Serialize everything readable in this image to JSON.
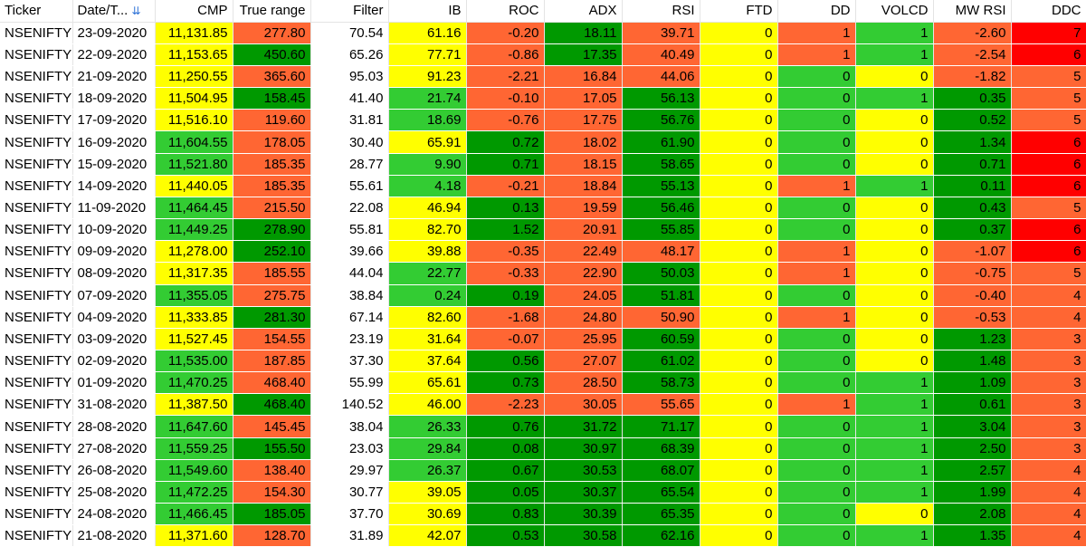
{
  "colors": {
    "yellow": "#ffff00",
    "light_green": "#33cc33",
    "dark_green": "#009900",
    "orange": "#ff6633",
    "red": "#ff0000",
    "white": "#ffffff"
  },
  "columns": [
    {
      "key": "ticker",
      "label": "Ticker",
      "align": "left",
      "width": 80
    },
    {
      "key": "date",
      "label": "Date/T...",
      "align": "left",
      "width": 91,
      "sort_icon": "sort-descending-icon"
    },
    {
      "key": "cmp",
      "label": "CMP",
      "align": "right",
      "width": 86
    },
    {
      "key": "true_range",
      "label": "True range",
      "align": "right",
      "width": 86
    },
    {
      "key": "filter",
      "label": "Filter",
      "align": "right",
      "width": 86
    },
    {
      "key": "ib",
      "label": "IB",
      "align": "right",
      "width": 86
    },
    {
      "key": "roc",
      "label": "ROC",
      "align": "right",
      "width": 86
    },
    {
      "key": "adx",
      "label": "ADX",
      "align": "right",
      "width": 86
    },
    {
      "key": "rsi",
      "label": "RSI",
      "align": "right",
      "width": 86
    },
    {
      "key": "ftd",
      "label": "FTD",
      "align": "right",
      "width": 86
    },
    {
      "key": "dd",
      "label": "DD",
      "align": "right",
      "width": 86
    },
    {
      "key": "volcd",
      "label": "VOLCD",
      "align": "right",
      "width": 86
    },
    {
      "key": "mw_rsi",
      "label": "MW RSI",
      "align": "right",
      "width": 86
    },
    {
      "key": "ddc",
      "label": "DDC",
      "align": "right",
      "width": 83
    }
  ],
  "rows": [
    {
      "ticker": "NSENIFTY",
      "date": "23-09-2020",
      "cmp": "11,131.85",
      "true_range": "277.80",
      "filter": "70.54",
      "ib": "61.16",
      "roc": "-0.20",
      "adx": "18.11",
      "rsi": "39.71",
      "ftd": "0",
      "dd": "1",
      "volcd": "1",
      "mw_rsi": "-2.60",
      "ddc": "7",
      "bg": {
        "cmp": "yellow",
        "true_range": "orange",
        "filter": "white",
        "ib": "yellow",
        "roc": "orange",
        "adx": "dark_green",
        "rsi": "orange",
        "ftd": "yellow",
        "dd": "orange",
        "volcd": "light_green",
        "mw_rsi": "orange",
        "ddc": "red"
      }
    },
    {
      "ticker": "NSENIFTY",
      "date": "22-09-2020",
      "cmp": "11,153.65",
      "true_range": "450.60",
      "filter": "65.26",
      "ib": "77.71",
      "roc": "-0.86",
      "adx": "17.35",
      "rsi": "40.49",
      "ftd": "0",
      "dd": "1",
      "volcd": "1",
      "mw_rsi": "-2.54",
      "ddc": "6",
      "bg": {
        "cmp": "yellow",
        "true_range": "dark_green",
        "filter": "white",
        "ib": "yellow",
        "roc": "orange",
        "adx": "dark_green",
        "rsi": "orange",
        "ftd": "yellow",
        "dd": "orange",
        "volcd": "light_green",
        "mw_rsi": "orange",
        "ddc": "red"
      }
    },
    {
      "ticker": "NSENIFTY",
      "date": "21-09-2020",
      "cmp": "11,250.55",
      "true_range": "365.60",
      "filter": "95.03",
      "ib": "91.23",
      "roc": "-2.21",
      "adx": "16.84",
      "rsi": "44.06",
      "ftd": "0",
      "dd": "0",
      "volcd": "0",
      "mw_rsi": "-1.82",
      "ddc": "5",
      "bg": {
        "cmp": "yellow",
        "true_range": "orange",
        "filter": "white",
        "ib": "yellow",
        "roc": "orange",
        "adx": "orange",
        "rsi": "orange",
        "ftd": "yellow",
        "dd": "light_green",
        "volcd": "yellow",
        "mw_rsi": "orange",
        "ddc": "orange"
      }
    },
    {
      "ticker": "NSENIFTY",
      "date": "18-09-2020",
      "cmp": "11,504.95",
      "true_range": "158.45",
      "filter": "41.40",
      "ib": "21.74",
      "roc": "-0.10",
      "adx": "17.05",
      "rsi": "56.13",
      "ftd": "0",
      "dd": "0",
      "volcd": "1",
      "mw_rsi": "0.35",
      "ddc": "5",
      "bg": {
        "cmp": "yellow",
        "true_range": "dark_green",
        "filter": "white",
        "ib": "light_green",
        "roc": "orange",
        "adx": "orange",
        "rsi": "dark_green",
        "ftd": "yellow",
        "dd": "light_green",
        "volcd": "light_green",
        "mw_rsi": "dark_green",
        "ddc": "orange"
      }
    },
    {
      "ticker": "NSENIFTY",
      "date": "17-09-2020",
      "cmp": "11,516.10",
      "true_range": "119.60",
      "filter": "31.81",
      "ib": "18.69",
      "roc": "-0.76",
      "adx": "17.75",
      "rsi": "56.76",
      "ftd": "0",
      "dd": "0",
      "volcd": "0",
      "mw_rsi": "0.52",
      "ddc": "5",
      "bg": {
        "cmp": "yellow",
        "true_range": "orange",
        "filter": "white",
        "ib": "light_green",
        "roc": "orange",
        "adx": "orange",
        "rsi": "dark_green",
        "ftd": "yellow",
        "dd": "light_green",
        "volcd": "yellow",
        "mw_rsi": "dark_green",
        "ddc": "orange"
      }
    },
    {
      "ticker": "NSENIFTY",
      "date": "16-09-2020",
      "cmp": "11,604.55",
      "true_range": "178.05",
      "filter": "30.40",
      "ib": "65.91",
      "roc": "0.72",
      "adx": "18.02",
      "rsi": "61.90",
      "ftd": "0",
      "dd": "0",
      "volcd": "0",
      "mw_rsi": "1.34",
      "ddc": "6",
      "bg": {
        "cmp": "light_green",
        "true_range": "orange",
        "filter": "white",
        "ib": "yellow",
        "roc": "dark_green",
        "adx": "orange",
        "rsi": "dark_green",
        "ftd": "yellow",
        "dd": "light_green",
        "volcd": "yellow",
        "mw_rsi": "dark_green",
        "ddc": "red"
      }
    },
    {
      "ticker": "NSENIFTY",
      "date": "15-09-2020",
      "cmp": "11,521.80",
      "true_range": "185.35",
      "filter": "28.77",
      "ib": "9.90",
      "roc": "0.71",
      "adx": "18.15",
      "rsi": "58.65",
      "ftd": "0",
      "dd": "0",
      "volcd": "0",
      "mw_rsi": "0.71",
      "ddc": "6",
      "bg": {
        "cmp": "light_green",
        "true_range": "orange",
        "filter": "white",
        "ib": "light_green",
        "roc": "dark_green",
        "adx": "orange",
        "rsi": "dark_green",
        "ftd": "yellow",
        "dd": "light_green",
        "volcd": "yellow",
        "mw_rsi": "dark_green",
        "ddc": "red"
      }
    },
    {
      "ticker": "NSENIFTY",
      "date": "14-09-2020",
      "cmp": "11,440.05",
      "true_range": "185.35",
      "filter": "55.61",
      "ib": "4.18",
      "roc": "-0.21",
      "adx": "18.84",
      "rsi": "55.13",
      "ftd": "0",
      "dd": "1",
      "volcd": "1",
      "mw_rsi": "0.11",
      "ddc": "6",
      "bg": {
        "cmp": "yellow",
        "true_range": "orange",
        "filter": "white",
        "ib": "light_green",
        "roc": "orange",
        "adx": "orange",
        "rsi": "dark_green",
        "ftd": "yellow",
        "dd": "orange",
        "volcd": "light_green",
        "mw_rsi": "dark_green",
        "ddc": "red"
      }
    },
    {
      "ticker": "NSENIFTY",
      "date": "11-09-2020",
      "cmp": "11,464.45",
      "true_range": "215.50",
      "filter": "22.08",
      "ib": "46.94",
      "roc": "0.13",
      "adx": "19.59",
      "rsi": "56.46",
      "ftd": "0",
      "dd": "0",
      "volcd": "0",
      "mw_rsi": "0.43",
      "ddc": "5",
      "bg": {
        "cmp": "light_green",
        "true_range": "orange",
        "filter": "white",
        "ib": "yellow",
        "roc": "dark_green",
        "adx": "orange",
        "rsi": "dark_green",
        "ftd": "yellow",
        "dd": "light_green",
        "volcd": "yellow",
        "mw_rsi": "dark_green",
        "ddc": "orange"
      }
    },
    {
      "ticker": "NSENIFTY",
      "date": "10-09-2020",
      "cmp": "11,449.25",
      "true_range": "278.90",
      "filter": "55.81",
      "ib": "82.70",
      "roc": "1.52",
      "adx": "20.91",
      "rsi": "55.85",
      "ftd": "0",
      "dd": "0",
      "volcd": "0",
      "mw_rsi": "0.37",
      "ddc": "6",
      "bg": {
        "cmp": "light_green",
        "true_range": "dark_green",
        "filter": "white",
        "ib": "yellow",
        "roc": "dark_green",
        "adx": "orange",
        "rsi": "dark_green",
        "ftd": "yellow",
        "dd": "light_green",
        "volcd": "yellow",
        "mw_rsi": "dark_green",
        "ddc": "red"
      }
    },
    {
      "ticker": "NSENIFTY",
      "date": "09-09-2020",
      "cmp": "11,278.00",
      "true_range": "252.10",
      "filter": "39.66",
      "ib": "39.88",
      "roc": "-0.35",
      "adx": "22.49",
      "rsi": "48.17",
      "ftd": "0",
      "dd": "1",
      "volcd": "0",
      "mw_rsi": "-1.07",
      "ddc": "6",
      "bg": {
        "cmp": "yellow",
        "true_range": "dark_green",
        "filter": "white",
        "ib": "yellow",
        "roc": "orange",
        "adx": "orange",
        "rsi": "orange",
        "ftd": "yellow",
        "dd": "orange",
        "volcd": "yellow",
        "mw_rsi": "orange",
        "ddc": "red"
      }
    },
    {
      "ticker": "NSENIFTY",
      "date": "08-09-2020",
      "cmp": "11,317.35",
      "true_range": "185.55",
      "filter": "44.04",
      "ib": "22.77",
      "roc": "-0.33",
      "adx": "22.90",
      "rsi": "50.03",
      "ftd": "0",
      "dd": "1",
      "volcd": "0",
      "mw_rsi": "-0.75",
      "ddc": "5",
      "bg": {
        "cmp": "yellow",
        "true_range": "orange",
        "filter": "white",
        "ib": "light_green",
        "roc": "orange",
        "adx": "orange",
        "rsi": "dark_green",
        "ftd": "yellow",
        "dd": "orange",
        "volcd": "yellow",
        "mw_rsi": "orange",
        "ddc": "orange"
      }
    },
    {
      "ticker": "NSENIFTY",
      "date": "07-09-2020",
      "cmp": "11,355.05",
      "true_range": "275.75",
      "filter": "38.84",
      "ib": "0.24",
      "roc": "0.19",
      "adx": "24.05",
      "rsi": "51.81",
      "ftd": "0",
      "dd": "0",
      "volcd": "0",
      "mw_rsi": "-0.40",
      "ddc": "4",
      "bg": {
        "cmp": "light_green",
        "true_range": "orange",
        "filter": "white",
        "ib": "light_green",
        "roc": "dark_green",
        "adx": "orange",
        "rsi": "dark_green",
        "ftd": "yellow",
        "dd": "light_green",
        "volcd": "yellow",
        "mw_rsi": "orange",
        "ddc": "orange"
      }
    },
    {
      "ticker": "NSENIFTY",
      "date": "04-09-2020",
      "cmp": "11,333.85",
      "true_range": "281.30",
      "filter": "67.14",
      "ib": "82.60",
      "roc": "-1.68",
      "adx": "24.80",
      "rsi": "50.90",
      "ftd": "0",
      "dd": "1",
      "volcd": "0",
      "mw_rsi": "-0.53",
      "ddc": "4",
      "bg": {
        "cmp": "yellow",
        "true_range": "dark_green",
        "filter": "white",
        "ib": "yellow",
        "roc": "orange",
        "adx": "orange",
        "rsi": "orange",
        "ftd": "yellow",
        "dd": "orange",
        "volcd": "yellow",
        "mw_rsi": "orange",
        "ddc": "orange"
      }
    },
    {
      "ticker": "NSENIFTY",
      "date": "03-09-2020",
      "cmp": "11,527.45",
      "true_range": "154.55",
      "filter": "23.19",
      "ib": "31.64",
      "roc": "-0.07",
      "adx": "25.95",
      "rsi": "60.59",
      "ftd": "0",
      "dd": "0",
      "volcd": "0",
      "mw_rsi": "1.23",
      "ddc": "3",
      "bg": {
        "cmp": "yellow",
        "true_range": "orange",
        "filter": "white",
        "ib": "yellow",
        "roc": "orange",
        "adx": "orange",
        "rsi": "dark_green",
        "ftd": "yellow",
        "dd": "light_green",
        "volcd": "yellow",
        "mw_rsi": "dark_green",
        "ddc": "orange"
      }
    },
    {
      "ticker": "NSENIFTY",
      "date": "02-09-2020",
      "cmp": "11,535.00",
      "true_range": "187.85",
      "filter": "37.30",
      "ib": "37.64",
      "roc": "0.56",
      "adx": "27.07",
      "rsi": "61.02",
      "ftd": "0",
      "dd": "0",
      "volcd": "0",
      "mw_rsi": "1.48",
      "ddc": "3",
      "bg": {
        "cmp": "light_green",
        "true_range": "orange",
        "filter": "white",
        "ib": "yellow",
        "roc": "dark_green",
        "adx": "orange",
        "rsi": "dark_green",
        "ftd": "yellow",
        "dd": "light_green",
        "volcd": "yellow",
        "mw_rsi": "dark_green",
        "ddc": "orange"
      }
    },
    {
      "ticker": "NSENIFTY",
      "date": "01-09-2020",
      "cmp": "11,470.25",
      "true_range": "468.40",
      "filter": "55.99",
      "ib": "65.61",
      "roc": "0.73",
      "adx": "28.50",
      "rsi": "58.73",
      "ftd": "0",
      "dd": "0",
      "volcd": "1",
      "mw_rsi": "1.09",
      "ddc": "3",
      "bg": {
        "cmp": "light_green",
        "true_range": "orange",
        "filter": "white",
        "ib": "yellow",
        "roc": "dark_green",
        "adx": "orange",
        "rsi": "dark_green",
        "ftd": "yellow",
        "dd": "light_green",
        "volcd": "light_green",
        "mw_rsi": "dark_green",
        "ddc": "orange"
      }
    },
    {
      "ticker": "NSENIFTY",
      "date": "31-08-2020",
      "cmp": "11,387.50",
      "true_range": "468.40",
      "filter": "140.52",
      "ib": "46.00",
      "roc": "-2.23",
      "adx": "30.05",
      "rsi": "55.65",
      "ftd": "0",
      "dd": "1",
      "volcd": "1",
      "mw_rsi": "0.61",
      "ddc": "3",
      "bg": {
        "cmp": "yellow",
        "true_range": "dark_green",
        "filter": "white",
        "ib": "yellow",
        "roc": "orange",
        "adx": "orange",
        "rsi": "orange",
        "ftd": "yellow",
        "dd": "orange",
        "volcd": "light_green",
        "mw_rsi": "dark_green",
        "ddc": "orange"
      }
    },
    {
      "ticker": "NSENIFTY",
      "date": "28-08-2020",
      "cmp": "11,647.60",
      "true_range": "145.45",
      "filter": "38.04",
      "ib": "26.33",
      "roc": "0.76",
      "adx": "31.72",
      "rsi": "71.17",
      "ftd": "0",
      "dd": "0",
      "volcd": "1",
      "mw_rsi": "3.04",
      "ddc": "3",
      "bg": {
        "cmp": "light_green",
        "true_range": "orange",
        "filter": "white",
        "ib": "light_green",
        "roc": "dark_green",
        "adx": "dark_green",
        "rsi": "dark_green",
        "ftd": "yellow",
        "dd": "light_green",
        "volcd": "light_green",
        "mw_rsi": "dark_green",
        "ddc": "orange"
      }
    },
    {
      "ticker": "NSENIFTY",
      "date": "27-08-2020",
      "cmp": "11,559.25",
      "true_range": "155.50",
      "filter": "23.03",
      "ib": "29.84",
      "roc": "0.08",
      "adx": "30.97",
      "rsi": "68.39",
      "ftd": "0",
      "dd": "0",
      "volcd": "1",
      "mw_rsi": "2.50",
      "ddc": "3",
      "bg": {
        "cmp": "light_green",
        "true_range": "dark_green",
        "filter": "white",
        "ib": "light_green",
        "roc": "dark_green",
        "adx": "dark_green",
        "rsi": "dark_green",
        "ftd": "yellow",
        "dd": "light_green",
        "volcd": "light_green",
        "mw_rsi": "dark_green",
        "ddc": "orange"
      }
    },
    {
      "ticker": "NSENIFTY",
      "date": "26-08-2020",
      "cmp": "11,549.60",
      "true_range": "138.40",
      "filter": "29.97",
      "ib": "26.37",
      "roc": "0.67",
      "adx": "30.53",
      "rsi": "68.07",
      "ftd": "0",
      "dd": "0",
      "volcd": "1",
      "mw_rsi": "2.57",
      "ddc": "4",
      "bg": {
        "cmp": "light_green",
        "true_range": "orange",
        "filter": "white",
        "ib": "light_green",
        "roc": "dark_green",
        "adx": "dark_green",
        "rsi": "dark_green",
        "ftd": "yellow",
        "dd": "light_green",
        "volcd": "light_green",
        "mw_rsi": "dark_green",
        "ddc": "orange"
      }
    },
    {
      "ticker": "NSENIFTY",
      "date": "25-08-2020",
      "cmp": "11,472.25",
      "true_range": "154.30",
      "filter": "30.77",
      "ib": "39.05",
      "roc": "0.05",
      "adx": "30.37",
      "rsi": "65.54",
      "ftd": "0",
      "dd": "0",
      "volcd": "1",
      "mw_rsi": "1.99",
      "ddc": "4",
      "bg": {
        "cmp": "light_green",
        "true_range": "orange",
        "filter": "white",
        "ib": "yellow",
        "roc": "dark_green",
        "adx": "dark_green",
        "rsi": "dark_green",
        "ftd": "yellow",
        "dd": "light_green",
        "volcd": "light_green",
        "mw_rsi": "dark_green",
        "ddc": "orange"
      }
    },
    {
      "ticker": "NSENIFTY",
      "date": "24-08-2020",
      "cmp": "11,466.45",
      "true_range": "185.05",
      "filter": "37.70",
      "ib": "30.69",
      "roc": "0.83",
      "adx": "30.39",
      "rsi": "65.35",
      "ftd": "0",
      "dd": "0",
      "volcd": "0",
      "mw_rsi": "2.08",
      "ddc": "4",
      "bg": {
        "cmp": "light_green",
        "true_range": "dark_green",
        "filter": "white",
        "ib": "yellow",
        "roc": "dark_green",
        "adx": "dark_green",
        "rsi": "dark_green",
        "ftd": "yellow",
        "dd": "light_green",
        "volcd": "yellow",
        "mw_rsi": "dark_green",
        "ddc": "orange"
      }
    },
    {
      "ticker": "NSENIFTY",
      "date": "21-08-2020",
      "cmp": "11,371.60",
      "true_range": "128.70",
      "filter": "31.89",
      "ib": "42.07",
      "roc": "0.53",
      "adx": "30.58",
      "rsi": "62.16",
      "ftd": "0",
      "dd": "0",
      "volcd": "1",
      "mw_rsi": "1.35",
      "ddc": "4",
      "bg": {
        "cmp": "yellow",
        "true_range": "orange",
        "filter": "white",
        "ib": "yellow",
        "roc": "dark_green",
        "adx": "dark_green",
        "rsi": "dark_green",
        "ftd": "yellow",
        "dd": "light_green",
        "volcd": "light_green",
        "mw_rsi": "dark_green",
        "ddc": "orange"
      }
    }
  ]
}
